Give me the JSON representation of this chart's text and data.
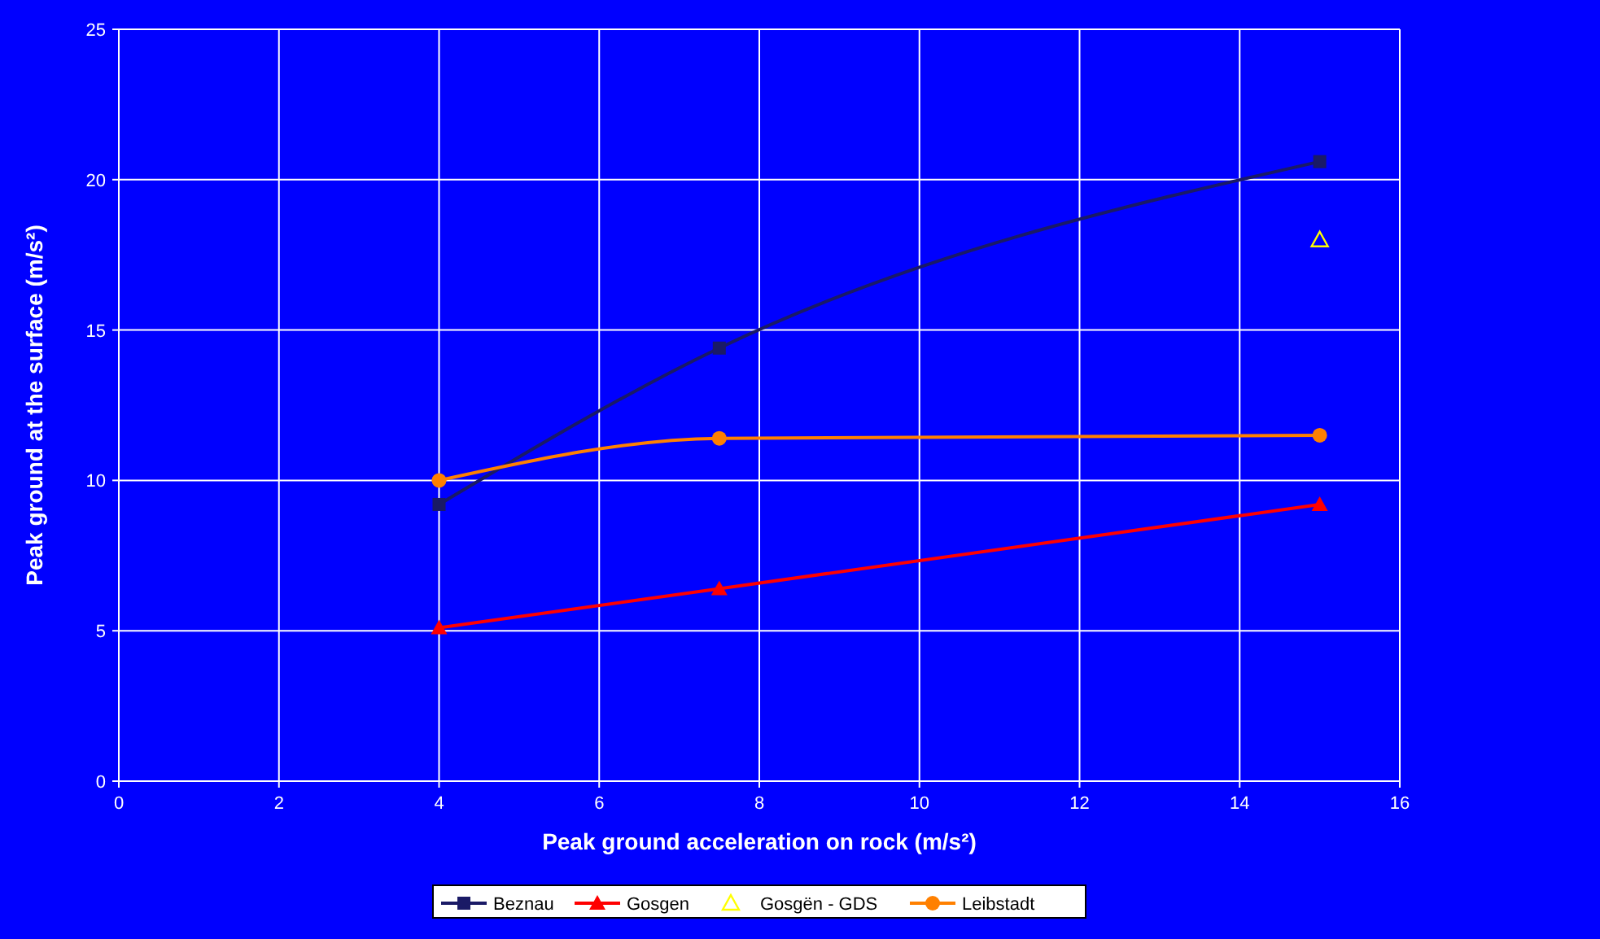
{
  "chart_data": {
    "type": "line",
    "xlabel": "Peak ground acceleration on rock (m/s²)",
    "ylabel": "Peak ground at the surface (m/s²)",
    "xlim": [
      0,
      16
    ],
    "xticks": [
      0,
      2,
      4,
      6,
      8,
      10,
      12,
      14,
      16
    ],
    "ylim": [
      0,
      25
    ],
    "yticks": [
      0,
      5,
      10,
      15,
      20,
      25
    ],
    "grid": true,
    "legend": "bottom",
    "line_style": "solid",
    "series": [
      {
        "name": "Beznau",
        "color": "#1a1a66",
        "marker": "square",
        "x": [
          4,
          7.5,
          15
        ],
        "values": [
          9.2,
          14.4,
          20.6
        ]
      },
      {
        "name": "Gosgen",
        "color": "#ff0000",
        "marker": "triangle",
        "x": [
          4,
          7.5,
          15
        ],
        "values": [
          5.1,
          6.4,
          9.2
        ]
      },
      {
        "name": "Gosgën - GDS",
        "type": "scatter",
        "color": "#ffff00",
        "marker": "triangle",
        "x": [
          15
        ],
        "values": [
          18
        ]
      },
      {
        "name": "Leibstadt",
        "color": "#ff8000",
        "marker": "circle",
        "x": [
          4,
          7.5,
          15
        ],
        "values": [
          10,
          11.4,
          11.5
        ]
      }
    ]
  }
}
